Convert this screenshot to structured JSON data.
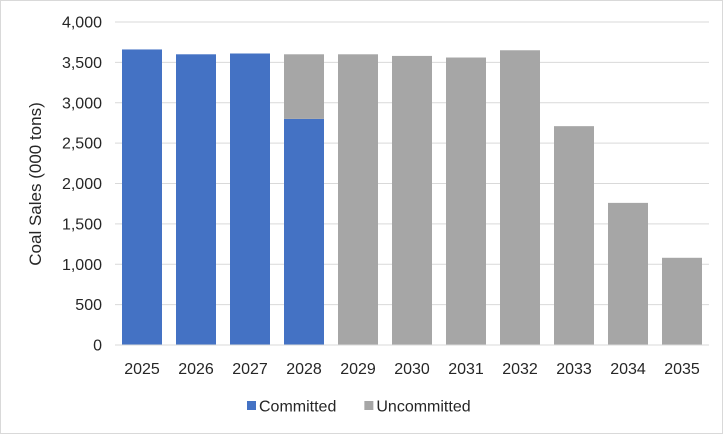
{
  "chart_data": {
    "type": "bar",
    "stacked": true,
    "categories": [
      "2025",
      "2026",
      "2027",
      "2028",
      "2029",
      "2030",
      "2031",
      "2032",
      "2033",
      "2034",
      "2035"
    ],
    "series": [
      {
        "name": "Committed",
        "color": "#4472c4",
        "values": [
          3660,
          3600,
          3610,
          2800,
          0,
          0,
          0,
          0,
          0,
          0,
          0
        ]
      },
      {
        "name": "Uncommitted",
        "color": "#a6a6a6",
        "values": [
          0,
          0,
          0,
          800,
          3600,
          3580,
          3560,
          3650,
          2710,
          1760,
          1080
        ]
      }
    ],
    "title": "",
    "xlabel": "",
    "ylabel": "Coal Sales (000 tons)",
    "ylim": [
      0,
      4000
    ],
    "yticks": [
      "0",
      "500",
      "1,000",
      "1,500",
      "2,000",
      "2,500",
      "3,000",
      "3,500",
      "4,000"
    ],
    "grid": true,
    "legend_position": "bottom"
  }
}
